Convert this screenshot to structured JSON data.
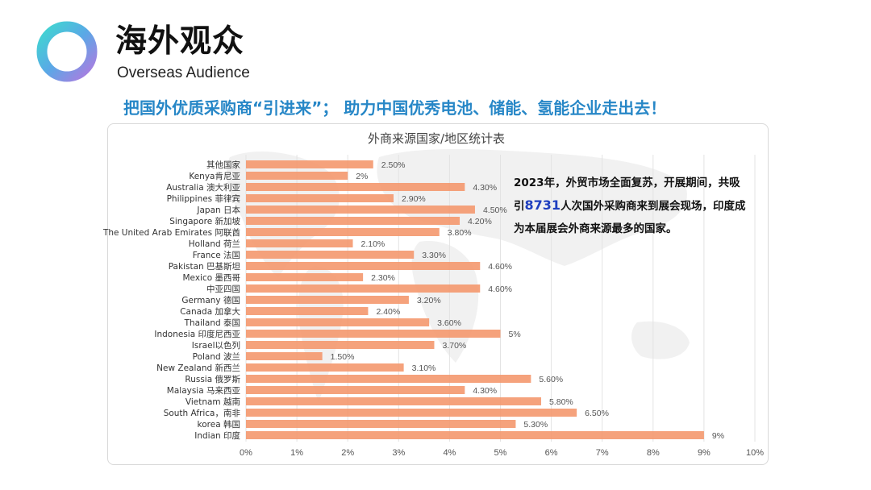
{
  "header": {
    "title_cn": "海外观众",
    "title_en": "Overseas Audience"
  },
  "headline": "把国外优质采购商“引进来”；  助力中国优秀电池、储能、氢能企业走出去！",
  "callout": {
    "line1": "2023年，外贸市场全面复苏，开展期间，共吸",
    "line2_prefix": "引",
    "highlight": "8731",
    "line2_rest": "人次国外采购商来到展会现场，印度成",
    "line3": "为本届展会外商来源最多的国家。"
  },
  "colors": {
    "brand_blue": "#2787c7",
    "bar": "#f4956a",
    "grid": "#e3e3e3",
    "highlight": "#1f3fbf"
  },
  "chart_data": {
    "type": "bar",
    "orientation": "horizontal",
    "title": "外商来源国家/地区统计表",
    "categories": [
      "其他国家",
      "Kenya肯尼亚",
      "Australia 澳大利亚",
      "Philippines 菲律宾",
      "Japan 日本",
      "Singapore 新加坡",
      "The United Arab Emirates 阿联酋",
      "Holland  荷兰",
      "France   法国",
      "Pakistan 巴基斯坦",
      "Mexico   墨西哥",
      "中亚四国",
      "Germany  德国",
      "Canada  加拿大",
      "Thailand 泰国",
      "Indonesia 印度尼西亚",
      "Israel以色列",
      "Poland 波兰",
      "New Zealand 新西兰",
      "Russia 俄罗斯",
      "Malaysia 马来西亚",
      "Vietnam 越南",
      "South Africa，南非",
      "korea  韩国",
      "Indian 印度"
    ],
    "values": [
      2.5,
      2,
      4.3,
      2.9,
      4.5,
      4.2,
      3.8,
      2.1,
      3.3,
      4.6,
      2.3,
      4.6,
      3.2,
      2.4,
      3.6,
      5,
      3.7,
      1.5,
      3.1,
      5.6,
      4.3,
      5.8,
      6.5,
      5.3,
      9
    ],
    "data_labels": [
      "2.50%",
      "2%",
      "4.30%",
      "2.90%",
      "4.50%",
      "4.20%",
      "3.80%",
      "2.10%",
      "3.30%",
      "4.60%",
      "2.30%",
      "4.60%",
      "3.20%",
      "2.40%",
      "3.60%",
      "5%",
      "3.70%",
      "1.50%",
      "3.10%",
      "5.60%",
      "4.30%",
      "5.80%",
      "6.50%",
      "5.30%",
      "9%"
    ],
    "x_ticks": [
      "0%",
      "1%",
      "2%",
      "3%",
      "4%",
      "5%",
      "6%",
      "7%",
      "8%",
      "9%",
      "10%"
    ],
    "xlim": [
      0,
      10
    ],
    "xlabel": "",
    "ylabel": "",
    "grid": true,
    "legend": "none"
  }
}
